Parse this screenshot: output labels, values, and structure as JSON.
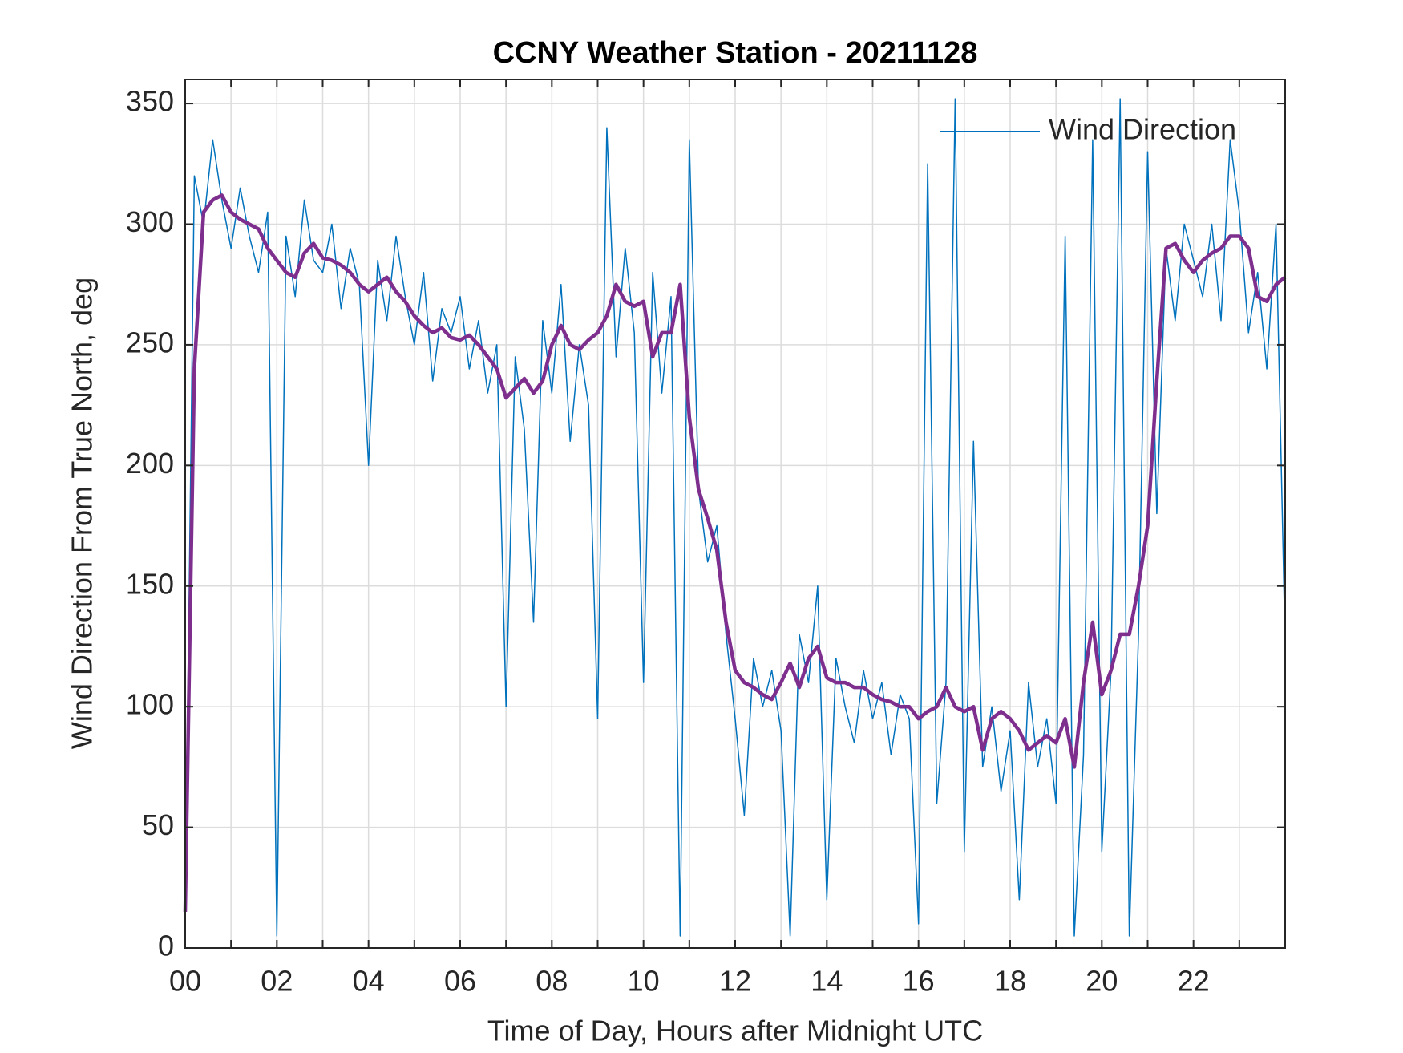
{
  "chart_data": {
    "type": "line",
    "title": "CCNY Weather Station - 20211128",
    "xlabel": "Time of Day, Hours after Midnight UTC",
    "ylabel": "Wind Direction From True North, deg",
    "x": [
      0,
      0.2,
      0.4,
      0.6,
      0.8,
      1,
      1.2,
      1.4,
      1.6,
      1.8,
      2,
      2.2,
      2.4,
      2.6,
      2.8,
      3,
      3.2,
      3.4,
      3.6,
      3.8,
      4,
      4.2,
      4.4,
      4.6,
      4.8,
      5,
      5.2,
      5.4,
      5.6,
      5.8,
      6,
      6.2,
      6.4,
      6.6,
      6.8,
      7,
      7.2,
      7.4,
      7.6,
      7.8,
      8,
      8.2,
      8.4,
      8.6,
      8.8,
      9,
      9.2,
      9.4,
      9.6,
      9.8,
      10,
      10.2,
      10.4,
      10.6,
      10.8,
      11,
      11.2,
      11.4,
      11.6,
      11.8,
      12,
      12.2,
      12.4,
      12.6,
      12.8,
      13,
      13.2,
      13.4,
      13.6,
      13.8,
      14,
      14.2,
      14.4,
      14.6,
      14.8,
      15,
      15.2,
      15.4,
      15.6,
      15.8,
      16,
      16.2,
      16.4,
      16.6,
      16.8,
      17,
      17.2,
      17.4,
      17.6,
      17.8,
      18,
      18.2,
      18.4,
      18.6,
      18.8,
      19,
      19.2,
      19.4,
      19.6,
      19.8,
      20,
      20.2,
      20.4,
      20.6,
      20.8,
      21,
      21.2,
      21.4,
      21.6,
      21.8,
      22,
      22.2,
      22.4,
      22.6,
      22.8,
      23,
      23.2,
      23.4,
      23.6,
      23.8,
      24
    ],
    "series": [
      {
        "name": "Wind Direction",
        "color": "#0072bd",
        "width": 1.5,
        "values": [
          15,
          320,
          300,
          335,
          310,
          290,
          315,
          295,
          280,
          305,
          5,
          295,
          270,
          310,
          285,
          280,
          300,
          265,
          290,
          275,
          200,
          285,
          260,
          295,
          270,
          250,
          280,
          235,
          265,
          255,
          270,
          240,
          260,
          230,
          250,
          100,
          245,
          215,
          135,
          260,
          230,
          275,
          210,
          250,
          225,
          95,
          340,
          245,
          290,
          255,
          110,
          280,
          230,
          270,
          5,
          335,
          190,
          160,
          175,
          130,
          95,
          55,
          120,
          100,
          115,
          90,
          5,
          130,
          110,
          150,
          20,
          120,
          100,
          85,
          115,
          95,
          110,
          80,
          105,
          95,
          10,
          325,
          60,
          110,
          352,
          40,
          210,
          75,
          100,
          65,
          90,
          20,
          110,
          75,
          95,
          60,
          295,
          5,
          80,
          335,
          40,
          115,
          352,
          5,
          130,
          330,
          180,
          290,
          260,
          300,
          285,
          270,
          300,
          260,
          335,
          305,
          255,
          280,
          240,
          300,
          125
        ]
      },
      {
        "color": "#7e2f8e",
        "width": 4.5,
        "values": [
          15,
          240,
          305,
          310,
          312,
          305,
          302,
          300,
          298,
          290,
          285,
          280,
          278,
          288,
          292,
          286,
          285,
          283,
          280,
          275,
          272,
          275,
          278,
          272,
          268,
          262,
          258,
          255,
          257,
          253,
          252,
          254,
          250,
          245,
          240,
          228,
          232,
          236,
          230,
          235,
          250,
          258,
          250,
          248,
          252,
          255,
          262,
          275,
          268,
          266,
          268,
          245,
          255,
          255,
          275,
          220,
          190,
          178,
          165,
          135,
          115,
          110,
          108,
          105,
          103,
          110,
          118,
          108,
          120,
          125,
          112,
          110,
          110,
          108,
          108,
          105,
          103,
          102,
          100,
          100,
          95,
          98,
          100,
          108,
          100,
          98,
          100,
          82,
          95,
          98,
          95,
          90,
          82,
          85,
          88,
          85,
          95,
          75,
          110,
          135,
          105,
          115,
          130,
          130,
          150,
          175,
          235,
          290,
          292,
          285,
          280,
          285,
          288,
          290,
          295,
          295,
          290,
          270,
          268,
          275,
          278
        ]
      }
    ],
    "xlim": [
      0,
      24
    ],
    "xticks": [
      {
        "value": 0,
        "label": "00"
      },
      {
        "value": 2,
        "label": "02"
      },
      {
        "value": 4,
        "label": "04"
      },
      {
        "value": 6,
        "label": "06"
      },
      {
        "value": 8,
        "label": "08"
      },
      10,
      12,
      14,
      16,
      18,
      20,
      22
    ],
    "xminorticks": [
      1,
      3,
      5,
      7,
      9,
      11,
      13,
      15,
      17,
      19,
      21,
      23
    ],
    "ylim": [
      0,
      360
    ],
    "yticks": [
      0,
      50,
      100,
      150,
      200,
      250,
      300,
      350
    ],
    "grid": true,
    "legend": "upper right"
  }
}
